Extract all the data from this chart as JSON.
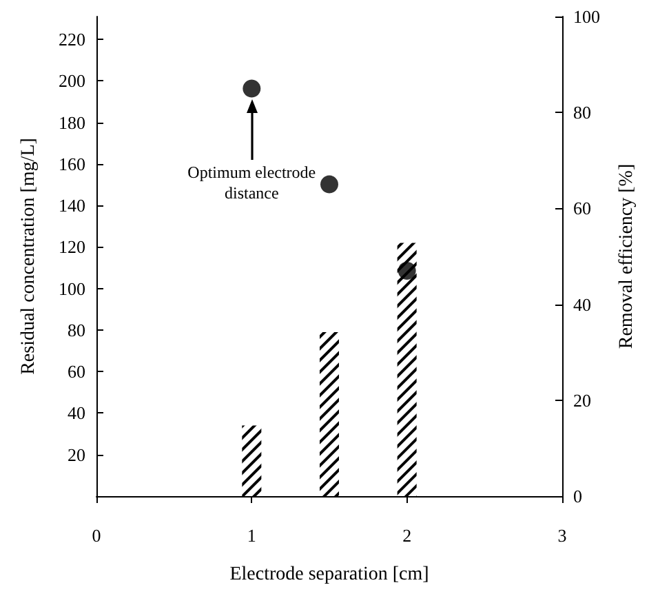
{
  "chart_data": {
    "type": "bar",
    "xlabel": "Electrode separation [cm]",
    "ylabel": "Residual concentration [mg/L]",
    "y2label": "Removal efficiency [%]",
    "x": [
      1,
      1.5,
      2
    ],
    "series": [
      {
        "color": "#000000",
        "values": [
          34,
          79,
          122
        ]
      },
      {
        "type": "scatter",
        "axis": "y2",
        "color": "#000000",
        "values": [
          85,
          65,
          47
        ]
      }
    ],
    "xlim": [
      0,
      3
    ],
    "xticks": [
      0,
      1,
      2,
      3
    ],
    "ylim": [
      0,
      231
    ],
    "yticks": [
      20,
      40,
      60,
      80,
      100,
      120,
      140,
      160,
      180,
      200,
      220
    ],
    "y2lim": [
      0,
      100
    ],
    "y2ticks": [
      0,
      20,
      40,
      60,
      80,
      100
    ],
    "annotations": [
      "Optimum electrode distance"
    ],
    "grid": false,
    "marker": "circle"
  }
}
